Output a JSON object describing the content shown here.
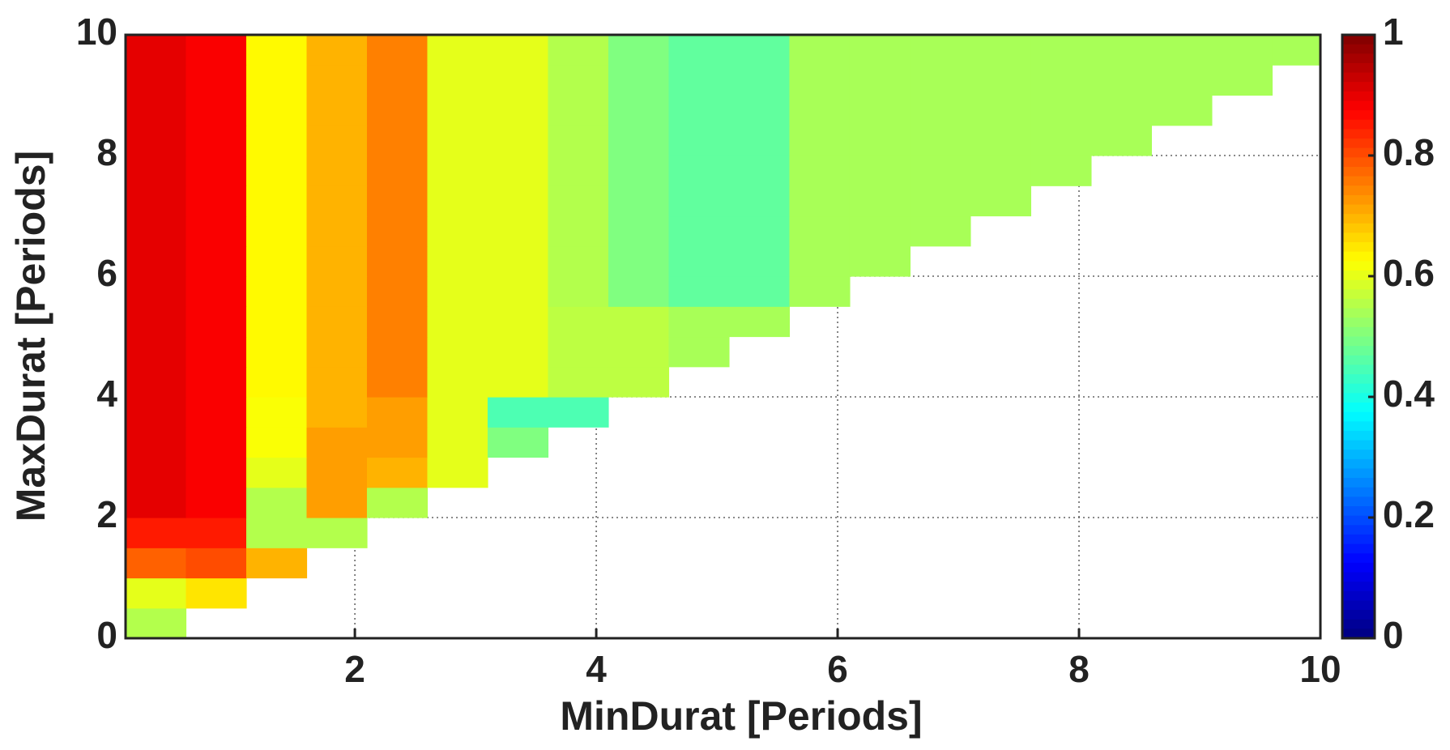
{
  "chart_data": {
    "type": "heatmap",
    "colormap": "jet",
    "grid": true,
    "x_label": "MinDurat [Periods]",
    "y_label": "MaxDurat [Periods]",
    "xlim": [
      0.1,
      10
    ],
    "ylim": [
      0,
      10
    ],
    "xticks": [
      2,
      4,
      6,
      8,
      10
    ],
    "yticks": [
      0,
      2,
      4,
      6,
      8,
      10
    ],
    "clim": [
      0,
      1
    ],
    "cticks": [
      0,
      0.2,
      0.4,
      0.6,
      0.8,
      1
    ],
    "x": [
      0.35,
      0.85,
      1.35,
      1.85,
      2.35,
      2.85,
      3.35,
      3.85,
      4.35,
      4.85,
      5.35,
      5.85,
      6.35,
      6.85,
      7.35,
      7.85,
      8.35,
      8.85,
      9.35,
      9.85
    ],
    "y": [
      0.25,
      0.75,
      1.25,
      1.75,
      2.25,
      2.75,
      3.25,
      3.75,
      4.25,
      4.75,
      5.25,
      5.75,
      6.25,
      6.75,
      7.25,
      7.75,
      8.25,
      8.75,
      9.25,
      9.75
    ],
    "z": [
      [
        0.55,
        null,
        null,
        null,
        null,
        null,
        null,
        null,
        null,
        null,
        null,
        null,
        null,
        null,
        null,
        null,
        null,
        null,
        null,
        null
      ],
      [
        0.6,
        0.65,
        null,
        null,
        null,
        null,
        null,
        null,
        null,
        null,
        null,
        null,
        null,
        null,
        null,
        null,
        null,
        null,
        null,
        null
      ],
      [
        0.78,
        0.8,
        0.7,
        null,
        null,
        null,
        null,
        null,
        null,
        null,
        null,
        null,
        null,
        null,
        null,
        null,
        null,
        null,
        null,
        null
      ],
      [
        0.85,
        0.85,
        0.55,
        0.55,
        null,
        null,
        null,
        null,
        null,
        null,
        null,
        null,
        null,
        null,
        null,
        null,
        null,
        null,
        null,
        null
      ],
      [
        0.9,
        0.88,
        0.55,
        0.72,
        0.55,
        null,
        null,
        null,
        null,
        null,
        null,
        null,
        null,
        null,
        null,
        null,
        null,
        null,
        null,
        null
      ],
      [
        0.9,
        0.88,
        0.6,
        0.72,
        0.7,
        0.6,
        null,
        null,
        null,
        null,
        null,
        null,
        null,
        null,
        null,
        null,
        null,
        null,
        null,
        null
      ],
      [
        0.9,
        0.88,
        0.62,
        0.72,
        0.72,
        0.6,
        0.5,
        null,
        null,
        null,
        null,
        null,
        null,
        null,
        null,
        null,
        null,
        null,
        null,
        null
      ],
      [
        0.9,
        0.88,
        0.62,
        0.7,
        0.72,
        0.6,
        0.45,
        0.45,
        null,
        null,
        null,
        null,
        null,
        null,
        null,
        null,
        null,
        null,
        null,
        null
      ],
      [
        0.9,
        0.88,
        0.63,
        0.7,
        0.75,
        0.6,
        0.6,
        0.56,
        0.56,
        null,
        null,
        null,
        null,
        null,
        null,
        null,
        null,
        null,
        null,
        null
      ],
      [
        0.9,
        0.88,
        0.63,
        0.7,
        0.75,
        0.6,
        0.6,
        0.56,
        0.56,
        0.54,
        null,
        null,
        null,
        null,
        null,
        null,
        null,
        null,
        null,
        null
      ],
      [
        0.9,
        0.88,
        0.63,
        0.7,
        0.75,
        0.6,
        0.6,
        0.56,
        0.56,
        0.54,
        0.54,
        null,
        null,
        null,
        null,
        null,
        null,
        null,
        null,
        null
      ],
      [
        0.9,
        0.88,
        0.63,
        0.7,
        0.75,
        0.6,
        0.6,
        0.55,
        0.5,
        0.47,
        0.47,
        0.54,
        null,
        null,
        null,
        null,
        null,
        null,
        null,
        null
      ],
      [
        0.9,
        0.88,
        0.63,
        0.7,
        0.75,
        0.6,
        0.6,
        0.55,
        0.5,
        0.47,
        0.47,
        0.54,
        0.54,
        null,
        null,
        null,
        null,
        null,
        null,
        null
      ],
      [
        0.9,
        0.88,
        0.63,
        0.7,
        0.75,
        0.6,
        0.6,
        0.55,
        0.5,
        0.47,
        0.47,
        0.54,
        0.54,
        0.54,
        null,
        null,
        null,
        null,
        null,
        null
      ],
      [
        0.9,
        0.88,
        0.63,
        0.7,
        0.75,
        0.6,
        0.6,
        0.55,
        0.5,
        0.47,
        0.47,
        0.54,
        0.54,
        0.54,
        0.54,
        null,
        null,
        null,
        null,
        null
      ],
      [
        0.9,
        0.88,
        0.63,
        0.7,
        0.75,
        0.6,
        0.6,
        0.55,
        0.5,
        0.47,
        0.47,
        0.54,
        0.54,
        0.54,
        0.54,
        0.54,
        null,
        null,
        null,
        null
      ],
      [
        0.9,
        0.88,
        0.63,
        0.7,
        0.75,
        0.6,
        0.6,
        0.55,
        0.5,
        0.47,
        0.47,
        0.54,
        0.54,
        0.54,
        0.54,
        0.54,
        0.54,
        null,
        null,
        null
      ],
      [
        0.9,
        0.88,
        0.63,
        0.7,
        0.75,
        0.6,
        0.6,
        0.55,
        0.5,
        0.47,
        0.47,
        0.54,
        0.54,
        0.54,
        0.54,
        0.54,
        0.54,
        0.54,
        null,
        null
      ],
      [
        0.9,
        0.88,
        0.63,
        0.7,
        0.75,
        0.6,
        0.6,
        0.55,
        0.5,
        0.47,
        0.47,
        0.54,
        0.54,
        0.54,
        0.54,
        0.54,
        0.54,
        0.54,
        0.54,
        null
      ],
      [
        0.9,
        0.88,
        0.63,
        0.7,
        0.75,
        0.6,
        0.6,
        0.55,
        0.5,
        0.47,
        0.47,
        0.54,
        0.54,
        0.54,
        0.54,
        0.54,
        0.54,
        0.54,
        0.54,
        0.54
      ]
    ]
  }
}
